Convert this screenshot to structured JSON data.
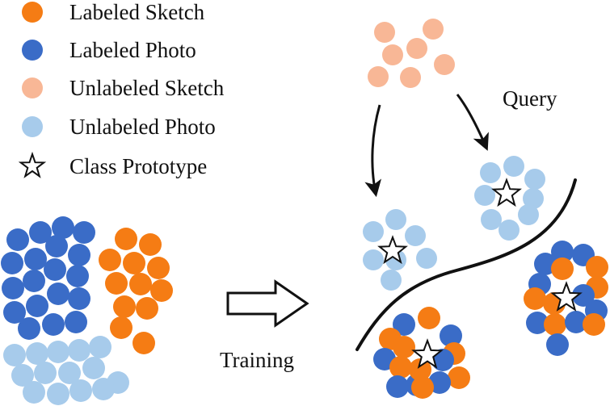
{
  "legend": {
    "items": [
      {
        "label": "Labeled Sketch",
        "color": "#f57c14",
        "marker": "dot"
      },
      {
        "label": "Labeled Photo",
        "color": "#3a6cc7",
        "marker": "dot"
      },
      {
        "label": "Unlabeled Sketch",
        "color": "#f8b796",
        "marker": "dot"
      },
      {
        "label": "Unlabeled Photo",
        "color": "#a7cbeb",
        "marker": "dot"
      },
      {
        "label": "Class Prototype",
        "color": "#ffffff",
        "marker": "star-icon"
      }
    ]
  },
  "diagram": {
    "training_label": "Training",
    "query_label": "Query",
    "colors": {
      "labeled_sketch": "#f57c14",
      "labeled_photo": "#3a6cc7",
      "unlabeled_sketch": "#f8b796",
      "unlabeled_photo": "#a7cbeb",
      "line": "#111111"
    }
  }
}
